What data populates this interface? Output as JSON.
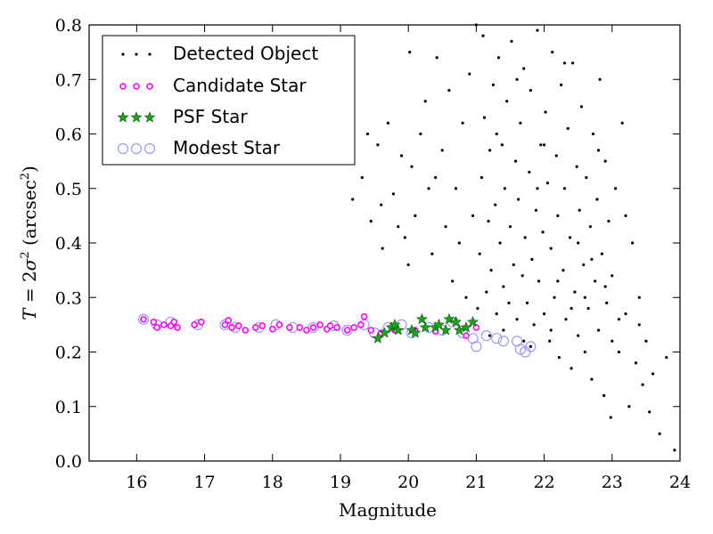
{
  "chart_data": {
    "type": "scatter",
    "xlabel": "Magnitude",
    "ylabel_parts": {
      "prefix": "T",
      "eq": " = 2",
      "sigma": "σ",
      "sup": "2",
      "unit_open": " (arcsec",
      "unit_sup": "2",
      "unit_close": ")"
    },
    "xlim": [
      15.3,
      24.0
    ],
    "ylim": [
      0.0,
      0.8
    ],
    "x_ticks": [
      16,
      17,
      18,
      19,
      20,
      21,
      22,
      23,
      24
    ],
    "y_ticks": [
      0.0,
      0.1,
      0.2,
      0.3,
      0.4,
      0.5,
      0.6,
      0.7,
      0.8
    ],
    "y_tick_labels": [
      "0.0",
      "0.1",
      "0.2",
      "0.3",
      "0.4",
      "0.5",
      "0.6",
      "0.7",
      "0.8"
    ],
    "grid": false,
    "legend_position": "top-left",
    "series": [
      {
        "name": "Detected Object",
        "marker": "dot",
        "color": "#000000",
        "generated_note": "dense cloud, values approximated",
        "points": [
          [
            19.18,
            0.48
          ],
          [
            19.32,
            0.52
          ],
          [
            19.45,
            0.44
          ],
          [
            19.55,
            0.58
          ],
          [
            19.62,
            0.39
          ],
          [
            19.7,
            0.62
          ],
          [
            19.78,
            0.49
          ],
          [
            19.85,
            0.43
          ],
          [
            19.9,
            0.56
          ],
          [
            19.95,
            0.41
          ],
          [
            20.02,
            0.75
          ],
          [
            20.05,
            0.54
          ],
          [
            20.1,
            0.45
          ],
          [
            20.18,
            0.6
          ],
          [
            20.25,
            0.66
          ],
          [
            20.3,
            0.5
          ],
          [
            20.35,
            0.38
          ],
          [
            20.42,
            0.74
          ],
          [
            20.5,
            0.57
          ],
          [
            20.55,
            0.43
          ],
          [
            20.6,
            0.68
          ],
          [
            20.65,
            0.33
          ],
          [
            20.7,
            0.5
          ],
          [
            20.75,
            0.4
          ],
          [
            20.8,
            0.62
          ],
          [
            20.85,
            0.3
          ],
          [
            20.9,
            0.71
          ],
          [
            20.95,
            0.45
          ],
          [
            21.0,
            0.8
          ],
          [
            21.02,
            0.28
          ],
          [
            21.05,
            0.38
          ],
          [
            21.08,
            0.52
          ],
          [
            21.1,
            0.78
          ],
          [
            21.12,
            0.63
          ],
          [
            21.15,
            0.31
          ],
          [
            21.18,
            0.44
          ],
          [
            21.2,
            0.57
          ],
          [
            21.22,
            0.35
          ],
          [
            21.25,
            0.69
          ],
          [
            21.28,
            0.47
          ],
          [
            21.3,
            0.27
          ],
          [
            21.33,
            0.74
          ],
          [
            21.35,
            0.4
          ],
          [
            21.38,
            0.58
          ],
          [
            21.4,
            0.32
          ],
          [
            21.42,
            0.5
          ],
          [
            21.45,
            0.66
          ],
          [
            21.48,
            0.29
          ],
          [
            21.5,
            0.43
          ],
          [
            21.52,
            0.77
          ],
          [
            21.55,
            0.36
          ],
          [
            21.58,
            0.55
          ],
          [
            21.6,
            0.26
          ],
          [
            21.62,
            0.48
          ],
          [
            21.65,
            0.62
          ],
          [
            21.68,
            0.34
          ],
          [
            21.7,
            0.72
          ],
          [
            21.72,
            0.41
          ],
          [
            21.75,
            0.29
          ],
          [
            21.78,
            0.53
          ],
          [
            21.8,
            0.68
          ],
          [
            21.82,
            0.37
          ],
          [
            21.85,
            0.25
          ],
          [
            21.88,
            0.46
          ],
          [
            21.9,
            0.79
          ],
          [
            21.92,
            0.33
          ],
          [
            21.95,
            0.58
          ],
          [
            21.98,
            0.42
          ],
          [
            22.0,
            0.27
          ],
          [
            22.02,
            0.64
          ],
          [
            22.05,
            0.51
          ],
          [
            22.08,
            0.22
          ],
          [
            22.1,
            0.39
          ],
          [
            22.12,
            0.75
          ],
          [
            22.15,
            0.3
          ],
          [
            22.18,
            0.56
          ],
          [
            22.2,
            0.45
          ],
          [
            22.22,
            0.19
          ],
          [
            22.25,
            0.69
          ],
          [
            22.28,
            0.35
          ],
          [
            22.3,
            0.5
          ],
          [
            22.32,
            0.26
          ],
          [
            22.35,
            0.61
          ],
          [
            22.38,
            0.41
          ],
          [
            22.4,
            0.17
          ],
          [
            22.42,
            0.73
          ],
          [
            22.45,
            0.31
          ],
          [
            22.48,
            0.54
          ],
          [
            22.5,
            0.23
          ],
          [
            22.52,
            0.46
          ],
          [
            22.55,
            0.65
          ],
          [
            22.58,
            0.36
          ],
          [
            22.6,
            0.2
          ],
          [
            22.62,
            0.52
          ],
          [
            22.65,
            0.28
          ],
          [
            22.68,
            0.43
          ],
          [
            22.7,
            0.15
          ],
          [
            22.72,
            0.6
          ],
          [
            22.75,
            0.33
          ],
          [
            22.78,
            0.48
          ],
          [
            22.8,
            0.24
          ],
          [
            22.82,
            0.7
          ],
          [
            22.85,
            0.38
          ],
          [
            22.88,
            0.12
          ],
          [
            22.9,
            0.55
          ],
          [
            22.92,
            0.29
          ],
          [
            22.95,
            0.44
          ],
          [
            22.98,
            0.08
          ],
          [
            23.0,
            0.34
          ],
          [
            23.05,
            0.5
          ],
          [
            23.1,
            0.2
          ],
          [
            23.15,
            0.62
          ],
          [
            23.2,
            0.27
          ],
          [
            23.25,
            0.1
          ],
          [
            23.3,
            0.4
          ],
          [
            23.35,
            0.18
          ],
          [
            23.4,
            0.3
          ],
          [
            23.45,
            0.14
          ],
          [
            23.5,
            0.22
          ],
          [
            23.55,
            0.09
          ],
          [
            23.6,
            0.16
          ],
          [
            23.7,
            0.05
          ],
          [
            23.8,
            0.19
          ],
          [
            23.92,
            0.02
          ],
          [
            19.4,
            0.6
          ],
          [
            19.6,
            0.47
          ],
          [
            20.0,
            0.36
          ],
          [
            20.4,
            0.52
          ],
          [
            20.7,
            0.26
          ],
          [
            21.3,
            0.6
          ],
          [
            21.6,
            0.7
          ],
          [
            21.9,
            0.5
          ],
          [
            22.2,
            0.33
          ],
          [
            22.5,
            0.4
          ],
          [
            22.8,
            0.57
          ],
          [
            23.0,
            0.22
          ],
          [
            23.2,
            0.45
          ],
          [
            22.0,
            0.58
          ],
          [
            22.3,
            0.73
          ],
          [
            21.7,
            0.22
          ],
          [
            22.1,
            0.24
          ],
          [
            22.4,
            0.28
          ],
          [
            22.6,
            0.3
          ],
          [
            22.9,
            0.32
          ],
          [
            23.1,
            0.26
          ],
          [
            21.4,
            0.24
          ],
          [
            21.2,
            0.23
          ],
          [
            21.8,
            0.21
          ],
          [
            22.7,
            0.37
          ],
          [
            23.4,
            0.25
          ]
        ]
      },
      {
        "name": "Candidate Star",
        "marker": "small-circle",
        "color": "#ff00ff",
        "points": [
          [
            16.1,
            0.26
          ],
          [
            16.25,
            0.255
          ],
          [
            16.3,
            0.245
          ],
          [
            16.4,
            0.25
          ],
          [
            16.5,
            0.248
          ],
          [
            16.55,
            0.255
          ],
          [
            16.6,
            0.245
          ],
          [
            16.85,
            0.25
          ],
          [
            16.95,
            0.255
          ],
          [
            17.3,
            0.25
          ],
          [
            17.35,
            0.258
          ],
          [
            17.4,
            0.245
          ],
          [
            17.5,
            0.248
          ],
          [
            17.6,
            0.24
          ],
          [
            17.75,
            0.245
          ],
          [
            17.85,
            0.248
          ],
          [
            18.0,
            0.242
          ],
          [
            18.1,
            0.25
          ],
          [
            18.25,
            0.245
          ],
          [
            18.4,
            0.245
          ],
          [
            18.5,
            0.24
          ],
          [
            18.6,
            0.245
          ],
          [
            18.7,
            0.25
          ],
          [
            18.8,
            0.242
          ],
          [
            18.85,
            0.248
          ],
          [
            18.95,
            0.245
          ],
          [
            19.1,
            0.24
          ],
          [
            19.2,
            0.245
          ],
          [
            19.3,
            0.25
          ],
          [
            19.35,
            0.265
          ],
          [
            19.45,
            0.24
          ],
          [
            19.6,
            0.235
          ],
          [
            19.8,
            0.24
          ],
          [
            20.1,
            0.24
          ],
          [
            20.4,
            0.238
          ],
          [
            20.85,
            0.23
          ],
          [
            21.0,
            0.245
          ]
        ]
      },
      {
        "name": "PSF Star",
        "marker": "star",
        "color": "#1fa31f",
        "points": [
          [
            19.55,
            0.225
          ],
          [
            19.65,
            0.235
          ],
          [
            19.75,
            0.245
          ],
          [
            19.8,
            0.25
          ],
          [
            19.85,
            0.24
          ],
          [
            20.05,
            0.24
          ],
          [
            20.1,
            0.235
          ],
          [
            20.2,
            0.26
          ],
          [
            20.25,
            0.245
          ],
          [
            20.4,
            0.245
          ],
          [
            20.45,
            0.25
          ],
          [
            20.55,
            0.24
          ],
          [
            20.6,
            0.26
          ],
          [
            20.7,
            0.255
          ],
          [
            20.75,
            0.24
          ],
          [
            20.85,
            0.245
          ],
          [
            20.95,
            0.255
          ]
        ]
      },
      {
        "name": "Modest Star",
        "marker": "open-circle",
        "color": "#9999ff",
        "points": [
          [
            16.1,
            0.26
          ],
          [
            16.3,
            0.25
          ],
          [
            16.5,
            0.255
          ],
          [
            16.9,
            0.25
          ],
          [
            17.3,
            0.25
          ],
          [
            17.45,
            0.245
          ],
          [
            17.8,
            0.245
          ],
          [
            18.05,
            0.25
          ],
          [
            18.3,
            0.245
          ],
          [
            18.6,
            0.245
          ],
          [
            18.9,
            0.248
          ],
          [
            19.1,
            0.24
          ],
          [
            19.35,
            0.25
          ],
          [
            19.5,
            0.235
          ],
          [
            19.7,
            0.245
          ],
          [
            19.9,
            0.25
          ],
          [
            20.05,
            0.235
          ],
          [
            20.3,
            0.245
          ],
          [
            20.5,
            0.24
          ],
          [
            20.65,
            0.255
          ],
          [
            20.8,
            0.235
          ],
          [
            20.95,
            0.225
          ],
          [
            21.0,
            0.21
          ],
          [
            21.15,
            0.23
          ],
          [
            21.3,
            0.225
          ],
          [
            21.4,
            0.22
          ],
          [
            21.6,
            0.22
          ],
          [
            21.65,
            0.205
          ],
          [
            21.72,
            0.2
          ],
          [
            21.8,
            0.21
          ]
        ]
      }
    ]
  }
}
